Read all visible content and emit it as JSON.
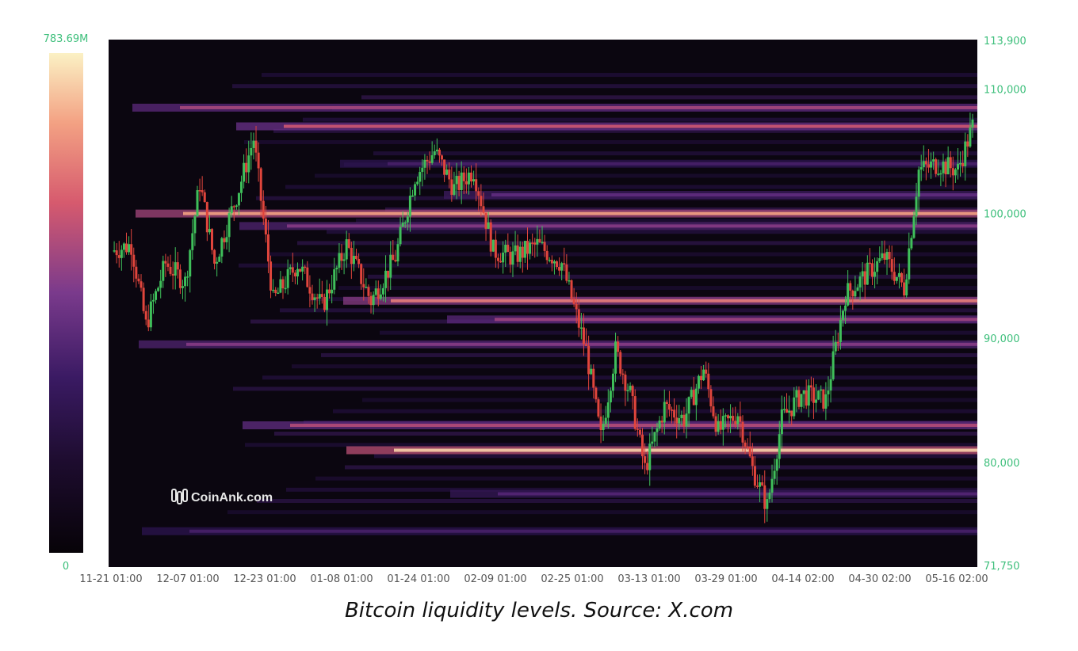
{
  "caption": "Bitcoin liquidity levels. Source: X.com",
  "watermark": "CoinAnk.com",
  "colors": {
    "axis_text_green": "#3dbf7b",
    "up_candle": "#3fbf5a",
    "down_candle": "#e0453c",
    "heat_dark": "#0b0610",
    "heat_high": "#fbf1c4"
  },
  "chart_data": {
    "type": "heatmap",
    "subtype": "candlestick with liquidation heatmap",
    "colorbar": {
      "max_label": "783.69M",
      "min_label": "0",
      "max": 783690000,
      "min": 0
    },
    "x_tick_labels": [
      "11-21 01:00",
      "12-07 01:00",
      "12-23 01:00",
      "01-08 01:00",
      "01-24 01:00",
      "02-09 01:00",
      "02-25 01:00",
      "03-13 01:00",
      "03-29 01:00",
      "04-14 02:00",
      "04-30 02:00",
      "05-16 02:00"
    ],
    "y_tick_labels": [
      "113,900",
      "110,000",
      "100,000",
      "90,000",
      "80,000",
      "71,750"
    ],
    "y_ticks": [
      113900,
      110000,
      100000,
      90000,
      80000,
      71750
    ],
    "ylim": [
      71750,
      113900
    ],
    "price_path": [
      {
        "t": 0,
        "p": 97000
      },
      {
        "t": 4,
        "p": 97500
      },
      {
        "t": 7,
        "p": 91000
      },
      {
        "t": 11,
        "p": 96000
      },
      {
        "t": 15,
        "p": 94500
      },
      {
        "t": 18,
        "p": 102500
      },
      {
        "t": 21,
        "p": 96000
      },
      {
        "t": 26,
        "p": 102000
      },
      {
        "t": 29,
        "p": 106000
      },
      {
        "t": 33,
        "p": 93000
      },
      {
        "t": 38,
        "p": 96000
      },
      {
        "t": 43,
        "p": 92500
      },
      {
        "t": 48,
        "p": 97500
      },
      {
        "t": 53,
        "p": 93000
      },
      {
        "t": 58,
        "p": 96500
      },
      {
        "t": 62,
        "p": 103000
      },
      {
        "t": 66,
        "p": 105000
      },
      {
        "t": 70,
        "p": 102000
      },
      {
        "t": 74,
        "p": 103500
      },
      {
        "t": 78,
        "p": 97000
      },
      {
        "t": 82,
        "p": 96500
      },
      {
        "t": 87,
        "p": 97500
      },
      {
        "t": 92,
        "p": 96000
      },
      {
        "t": 97,
        "p": 89000
      },
      {
        "t": 100,
        "p": 82000
      },
      {
        "t": 103,
        "p": 89000
      },
      {
        "t": 106,
        "p": 85500
      },
      {
        "t": 109,
        "p": 79500
      },
      {
        "t": 113,
        "p": 84500
      },
      {
        "t": 117,
        "p": 83500
      },
      {
        "t": 121,
        "p": 87500
      },
      {
        "t": 124,
        "p": 82500
      },
      {
        "t": 128,
        "p": 84000
      },
      {
        "t": 131,
        "p": 79500
      },
      {
        "t": 134,
        "p": 76500
      },
      {
        "t": 137,
        "p": 83500
      },
      {
        "t": 141,
        "p": 85500
      },
      {
        "t": 146,
        "p": 85000
      },
      {
        "t": 150,
        "p": 93500
      },
      {
        "t": 154,
        "p": 95000
      },
      {
        "t": 158,
        "p": 96500
      },
      {
        "t": 162,
        "p": 94000
      },
      {
        "t": 165,
        "p": 103500
      },
      {
        "t": 169,
        "p": 104000
      },
      {
        "t": 173,
        "p": 103500
      },
      {
        "t": 176,
        "p": 107000
      }
    ],
    "liquidity_bands": [
      {
        "price": 108500,
        "intensity": 0.62
      },
      {
        "price": 107000,
        "intensity": 0.7
      },
      {
        "price": 104000,
        "intensity": 0.35
      },
      {
        "price": 101500,
        "intensity": 0.45
      },
      {
        "price": 100000,
        "intensity": 0.88
      },
      {
        "price": 99000,
        "intensity": 0.55
      },
      {
        "price": 93000,
        "intensity": 0.8
      },
      {
        "price": 91500,
        "intensity": 0.6
      },
      {
        "price": 89500,
        "intensity": 0.55
      },
      {
        "price": 83000,
        "intensity": 0.65
      },
      {
        "price": 81000,
        "intensity": 0.95
      },
      {
        "price": 77500,
        "intensity": 0.4
      },
      {
        "price": 74500,
        "intensity": 0.35
      }
    ]
  }
}
